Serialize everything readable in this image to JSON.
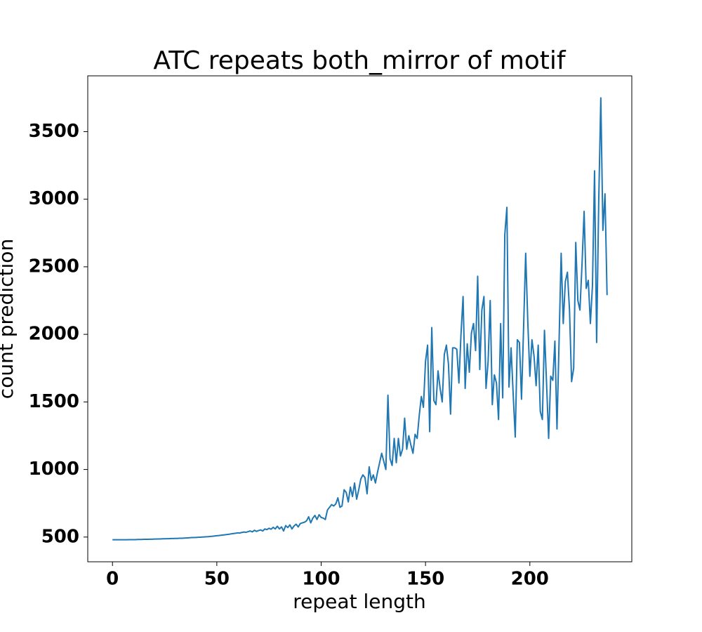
{
  "chart_data": {
    "type": "line",
    "title": "ATC repeats both_mirror of motif",
    "x_label": "repeat length",
    "y_label": "count prediction",
    "color": "#1f77b4",
    "x": [
      0,
      1,
      2,
      3,
      4,
      5,
      6,
      7,
      8,
      9,
      10,
      11,
      12,
      13,
      14,
      15,
      16,
      17,
      18,
      19,
      20,
      21,
      22,
      23,
      24,
      25,
      26,
      27,
      28,
      29,
      30,
      31,
      32,
      33,
      34,
      35,
      36,
      37,
      38,
      39,
      40,
      41,
      42,
      43,
      44,
      45,
      46,
      47,
      48,
      49,
      50,
      51,
      52,
      53,
      54,
      55,
      56,
      57,
      58,
      59,
      60,
      61,
      62,
      63,
      64,
      65,
      66,
      67,
      68,
      69,
      70,
      71,
      72,
      73,
      74,
      75,
      76,
      77,
      78,
      79,
      80,
      81,
      82,
      83,
      84,
      85,
      86,
      87,
      88,
      89,
      90,
      91,
      92,
      93,
      94,
      95,
      96,
      97,
      98,
      99,
      100,
      101,
      102,
      103,
      104,
      105,
      106,
      107,
      108,
      109,
      110,
      111,
      112,
      113,
      114,
      115,
      116,
      117,
      118,
      119,
      120,
      121,
      122,
      123,
      124,
      125,
      126,
      127,
      128,
      129,
      130,
      131,
      132,
      133,
      134,
      135,
      136,
      137,
      138,
      139,
      140,
      141,
      142,
      143,
      144,
      145,
      146,
      147,
      148,
      149,
      150,
      151,
      152,
      153,
      154,
      155,
      156,
      157,
      158,
      159,
      160,
      161,
      162,
      163,
      164,
      165,
      166,
      167,
      168,
      169,
      170,
      171,
      172,
      173,
      174,
      175,
      176,
      177,
      178,
      179,
      180,
      181,
      182,
      183,
      184,
      185,
      186,
      187,
      188,
      189,
      190,
      191,
      192,
      193,
      194,
      195,
      196,
      197,
      198,
      199,
      200,
      201,
      202,
      203,
      204,
      205,
      206,
      207,
      208,
      209,
      210,
      211,
      212,
      213,
      214,
      215,
      216,
      217,
      218,
      219,
      220,
      221,
      222,
      223,
      224,
      225,
      226,
      227,
      228,
      229,
      230,
      231,
      232,
      233,
      234,
      235,
      236,
      237
    ],
    "values": [
      480,
      480,
      480,
      480,
      480,
      480,
      480,
      480,
      481,
      481,
      481,
      481,
      482,
      482,
      482,
      483,
      483,
      483,
      484,
      484,
      485,
      485,
      486,
      486,
      487,
      487,
      488,
      488,
      489,
      489,
      490,
      490,
      491,
      491,
      492,
      493,
      494,
      495,
      496,
      496,
      497,
      498,
      499,
      500,
      501,
      502,
      503,
      505,
      506,
      508,
      510,
      511,
      513,
      515,
      517,
      519,
      521,
      524,
      526,
      528,
      531,
      530,
      534,
      537,
      535,
      540,
      545,
      538,
      550,
      542,
      548,
      553,
      545,
      560,
      555,
      565,
      558,
      572,
      560,
      580,
      560,
      575,
      545,
      585,
      570,
      590,
      560,
      582,
      595,
      575,
      600,
      605,
      610,
      620,
      650,
      605,
      640,
      660,
      630,
      665,
      645,
      640,
      630,
      700,
      720,
      740,
      730,
      745,
      790,
      720,
      730,
      850,
      830,
      760,
      870,
      800,
      900,
      780,
      850,
      930,
      960,
      940,
      820,
      1020,
      920,
      960,
      900,
      980,
      1050,
      1120,
      1060,
      1000,
      1550,
      1080,
      1030,
      1230,
      1050,
      1230,
      1100,
      1150,
      1380,
      1150,
      1250,
      1180,
      1120,
      1260,
      1230,
      1400,
      1540,
      1460,
      1800,
      1920,
      1280,
      2050,
      1510,
      1480,
      1730,
      1600,
      1500,
      1850,
      1920,
      1780,
      1410,
      1900,
      1900,
      1890,
      1640,
      2000,
      2280,
      1600,
      1930,
      1720,
      2010,
      2080,
      1880,
      2430,
      1740,
      2180,
      2280,
      1600,
      1800,
      2250,
      1480,
      1700,
      1640,
      1370,
      2080,
      1530,
      2740,
      2940,
      1610,
      1900,
      1560,
      1240,
      1960,
      1940,
      1520,
      2050,
      2600,
      2100,
      1690,
      1960,
      1840,
      1620,
      1920,
      1430,
      1370,
      2030,
      1640,
      1230,
      1690,
      1660,
      1950,
      1300,
      1950,
      2600,
      2080,
      2390,
      2460,
      2180,
      1650,
      1750,
      2680,
      2250,
      2180,
      2520,
      2910,
      2340,
      2400,
      2080,
      2360,
      3210,
      1940,
      2980,
      3750,
      2770,
      3040,
      2290
    ],
    "xlim": [
      -11.85,
      248.85
    ],
    "ylim": [
      317,
      3913
    ],
    "xticks": [
      0,
      50,
      100,
      150,
      200
    ],
    "yticks": [
      500,
      1000,
      1500,
      2000,
      2500,
      3000,
      3500
    ]
  }
}
